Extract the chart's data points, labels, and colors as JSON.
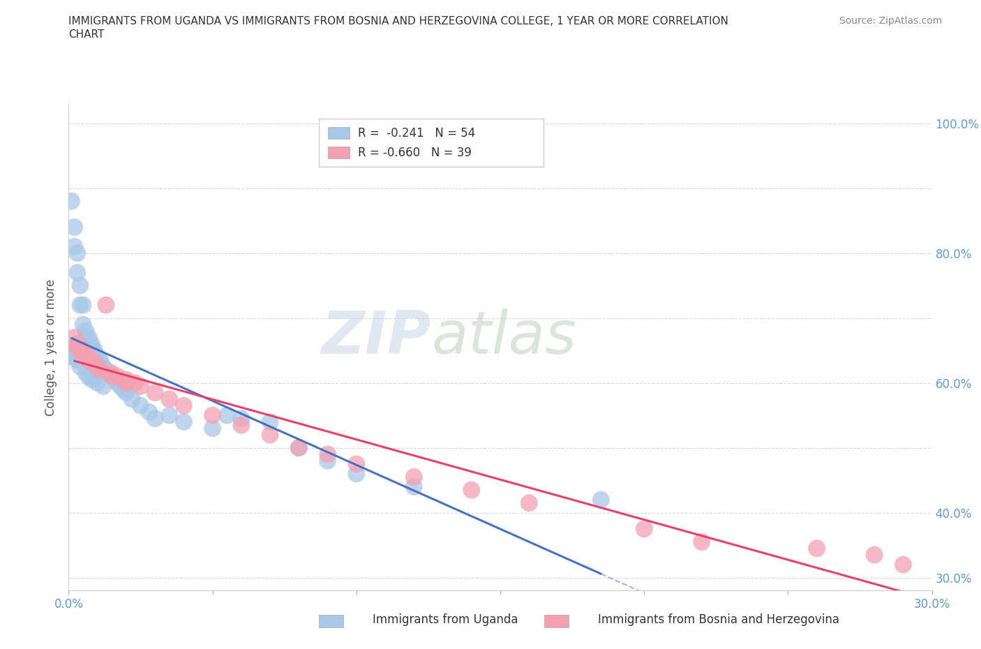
{
  "title_line1": "IMMIGRANTS FROM UGANDA VS IMMIGRANTS FROM BOSNIA AND HERZEGOVINA COLLEGE, 1 YEAR OR MORE CORRELATION",
  "title_line2": "CHART",
  "source_text": "Source: ZipAtlas.com",
  "ylabel": "College, 1 year or more",
  "xlim": [
    0.0,
    0.3
  ],
  "ylim": [
    0.28,
    1.03
  ],
  "x_ticks": [
    0.0,
    0.05,
    0.1,
    0.15,
    0.2,
    0.25,
    0.3
  ],
  "y_ticks": [
    0.3,
    0.4,
    0.5,
    0.6,
    0.7,
    0.8,
    0.9,
    1.0
  ],
  "y_tick_labels_right": [
    "30.0%",
    "40.0%",
    "",
    "60.0%",
    "",
    "80.0%",
    "",
    "100.0%"
  ],
  "watermark_part1": "ZIP",
  "watermark_part2": "atlas",
  "uganda_R": -0.241,
  "uganda_N": 54,
  "bosnia_R": -0.66,
  "bosnia_N": 39,
  "uganda_color": "#a8c8e8",
  "bosnia_color": "#f4a0b0",
  "uganda_line_color": "#4472c4",
  "bosnia_line_color": "#e84068",
  "background_color": "#ffffff",
  "grid_color": "#d8d8d8",
  "tick_color": "#5b9bd5",
  "uganda_x": [
    0.001,
    0.002,
    0.002,
    0.003,
    0.003,
    0.004,
    0.004,
    0.005,
    0.005,
    0.006,
    0.006,
    0.007,
    0.007,
    0.008,
    0.008,
    0.009,
    0.009,
    0.01,
    0.01,
    0.011,
    0.011,
    0.012,
    0.013,
    0.014,
    0.015,
    0.016,
    0.017,
    0.018,
    0.019,
    0.02,
    0.022,
    0.025,
    0.028,
    0.03,
    0.035,
    0.04,
    0.05,
    0.055,
    0.06,
    0.07,
    0.08,
    0.09,
    0.1,
    0.12,
    0.185,
    0.001,
    0.002,
    0.003,
    0.004,
    0.006,
    0.007,
    0.008,
    0.01,
    0.012
  ],
  "uganda_y": [
    0.88,
    0.84,
    0.81,
    0.8,
    0.77,
    0.75,
    0.72,
    0.72,
    0.69,
    0.68,
    0.67,
    0.67,
    0.665,
    0.66,
    0.655,
    0.65,
    0.645,
    0.64,
    0.64,
    0.635,
    0.63,
    0.625,
    0.62,
    0.615,
    0.61,
    0.605,
    0.6,
    0.595,
    0.59,
    0.585,
    0.575,
    0.565,
    0.555,
    0.545,
    0.55,
    0.54,
    0.53,
    0.55,
    0.545,
    0.54,
    0.5,
    0.48,
    0.46,
    0.44,
    0.42,
    0.64,
    0.645,
    0.635,
    0.625,
    0.615,
    0.61,
    0.605,
    0.6,
    0.595
  ],
  "bosnia_x": [
    0.002,
    0.003,
    0.004,
    0.005,
    0.006,
    0.007,
    0.008,
    0.009,
    0.01,
    0.011,
    0.013,
    0.015,
    0.017,
    0.02,
    0.023,
    0.025,
    0.03,
    0.035,
    0.04,
    0.05,
    0.06,
    0.07,
    0.08,
    0.09,
    0.1,
    0.12,
    0.14,
    0.16,
    0.2,
    0.22,
    0.26,
    0.28,
    0.29,
    0.003,
    0.005,
    0.007,
    0.01,
    0.015,
    0.02
  ],
  "bosnia_y": [
    0.67,
    0.66,
    0.655,
    0.65,
    0.645,
    0.64,
    0.635,
    0.63,
    0.625,
    0.62,
    0.72,
    0.615,
    0.61,
    0.605,
    0.6,
    0.595,
    0.585,
    0.575,
    0.565,
    0.55,
    0.535,
    0.52,
    0.5,
    0.49,
    0.475,
    0.455,
    0.435,
    0.415,
    0.375,
    0.355,
    0.345,
    0.335,
    0.32,
    0.655,
    0.645,
    0.635,
    0.625,
    0.61,
    0.6
  ]
}
